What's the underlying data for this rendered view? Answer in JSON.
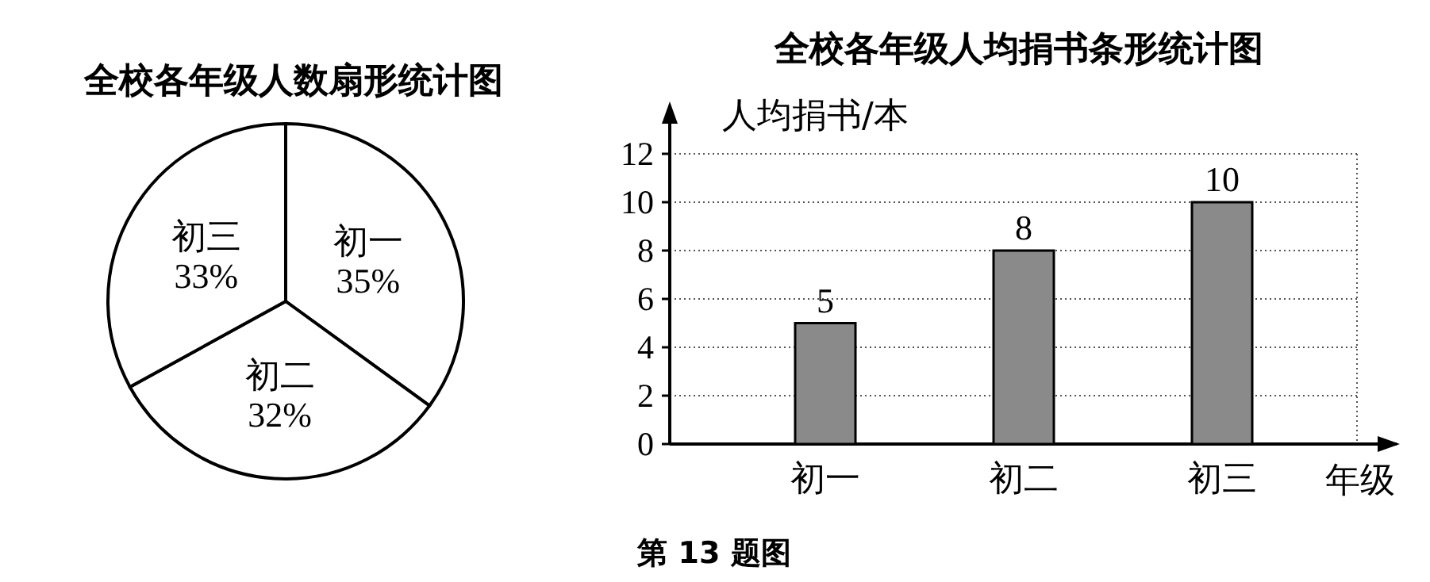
{
  "chart_data": [
    {
      "type": "pie",
      "title": "全校各年级人数扇形统计图",
      "categories": [
        "初一",
        "初二",
        "初三"
      ],
      "values": [
        35,
        32,
        33
      ],
      "colors": [
        "#ffffff",
        "#ffffff",
        "#ffffff"
      ],
      "value_labels": [
        "35%",
        "32%",
        "33%"
      ]
    },
    {
      "type": "bar",
      "title": "全校各年级人均捐书条形统计图",
      "categories": [
        "初一",
        "初二",
        "初三"
      ],
      "values": [
        5,
        8,
        10
      ],
      "color": "#8a8a8a",
      "ylim": [
        0,
        12
      ],
      "yticks": [
        0,
        2,
        4,
        6,
        8,
        10,
        12
      ],
      "grid": "y",
      "data_labels": true,
      "xlabel": "年级",
      "ylabel": "人均捐书/本",
      "annotations": [
        "第 13 题图"
      ]
    }
  ]
}
